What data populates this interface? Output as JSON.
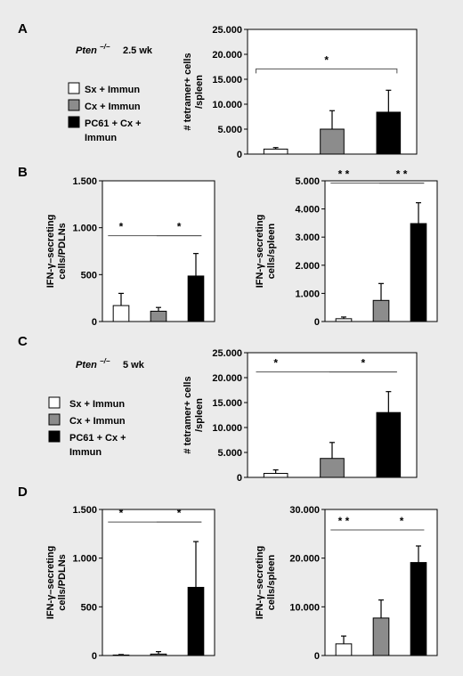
{
  "panels": [
    {
      "id": "A",
      "label": "A"
    },
    {
      "id": "B",
      "label": "B"
    },
    {
      "id": "C",
      "label": "C"
    },
    {
      "id": "D",
      "label": "D"
    }
  ],
  "annotations": {
    "A": {
      "genotype": "Pten",
      "genotype_sup": "−/−",
      "time": "2.5 wk"
    },
    "C": {
      "genotype": "Pten",
      "genotype_sup": "−/−",
      "time": "5 wk"
    }
  },
  "legend": [
    {
      "label": "Sx + Immun",
      "color": "#ffffff"
    },
    {
      "label": "Cx + Immun",
      "color": "#8c8c8c"
    },
    {
      "label": "PC61 + Cx +",
      "label2": "Immun",
      "color": "#000000"
    }
  ],
  "colors": {
    "bar1": "#ffffff",
    "bar2": "#8c8c8c",
    "bar3": "#000000",
    "background": "#ebebeb"
  },
  "chart_data": [
    {
      "panel": "A",
      "type": "bar",
      "categories": [
        "Sx + Immun",
        "Cx + Immun",
        "PC61 + Cx + Immun"
      ],
      "values": [
        1000,
        5000,
        8400
      ],
      "errors": [
        300,
        3700,
        4400
      ],
      "ylabel": "# tetramer+ cells /spleen",
      "ylim": [
        0,
        25000
      ],
      "yticks": [
        0,
        5000,
        10000,
        15000,
        20000,
        25000
      ],
      "yticklabels": [
        "0",
        "5.000",
        "10.000",
        "15.000",
        "20.000",
        "25.000"
      ],
      "significance": [
        {
          "from": 0,
          "to": 2,
          "label": "*"
        }
      ]
    },
    {
      "panel": "B",
      "type": "bar",
      "categories": [
        "Sx + Immun",
        "Cx + Immun",
        "PC61 + Cx + Immun"
      ],
      "values": [
        170,
        110,
        485
      ],
      "errors": [
        130,
        40,
        240
      ],
      "ylabel": "IFN-γ–secreting cells/PDLNs",
      "ylim": [
        0,
        1500
      ],
      "yticks": [
        0,
        500,
        1000,
        1500
      ],
      "yticklabels": [
        "0",
        "500",
        "1.000",
        "1.500"
      ],
      "significance": [
        {
          "from": 0,
          "to": 2,
          "label": "*"
        },
        {
          "from": 1,
          "to": 2,
          "label": "*"
        }
      ]
    },
    {
      "panel": "B",
      "type": "bar",
      "categories": [
        "Sx + Immun",
        "Cx + Immun",
        "PC61 + Cx + Immun"
      ],
      "values": [
        100,
        750,
        3480
      ],
      "errors": [
        60,
        600,
        740
      ],
      "ylabel": "IFN-γ–secreting cells/spleen",
      "ylim": [
        0,
        5000
      ],
      "yticks": [
        0,
        1000,
        2000,
        3000,
        4000,
        5000
      ],
      "yticklabels": [
        "0",
        "1.000",
        "2.000",
        "3.000",
        "4.000",
        "5.000"
      ],
      "significance": [
        {
          "from": 0,
          "to": 2,
          "label": "* *"
        },
        {
          "from": 1,
          "to": 2,
          "label": "* *"
        }
      ]
    },
    {
      "panel": "C",
      "type": "bar",
      "categories": [
        "Sx + Immun",
        "Cx + Immun",
        "PC61 + Cx + Immun"
      ],
      "values": [
        800,
        3800,
        13000
      ],
      "errors": [
        700,
        3200,
        4200
      ],
      "ylabel": "# tetramer+ cells /spleen",
      "ylim": [
        0,
        25000
      ],
      "yticks": [
        0,
        5000,
        10000,
        15000,
        20000,
        25000
      ],
      "yticklabels": [
        "0",
        "5.000",
        "10.000",
        "15.000",
        "20.000",
        "25.000"
      ],
      "significance": [
        {
          "from": 0,
          "to": 2,
          "label": "*"
        },
        {
          "from": 1,
          "to": 2,
          "label": "*"
        }
      ]
    },
    {
      "panel": "D",
      "type": "bar",
      "categories": [
        "Sx + Immun",
        "Cx + Immun",
        "PC61 + Cx + Immun"
      ],
      "values": [
        5,
        15,
        700
      ],
      "errors": [
        5,
        25,
        470
      ],
      "ylabel": "IFN-γ–secreting cells/PDLNs",
      "ylim": [
        0,
        1500
      ],
      "yticks": [
        0,
        500,
        1000,
        1500
      ],
      "yticklabels": [
        "0",
        "500",
        "1.000",
        "1.500"
      ],
      "significance": [
        {
          "from": 0,
          "to": 2,
          "label": "*"
        },
        {
          "from": 1,
          "to": 2,
          "label": "*"
        }
      ]
    },
    {
      "panel": "D",
      "type": "bar",
      "categories": [
        "Sx + Immun",
        "Cx + Immun",
        "PC61 + Cx + Immun"
      ],
      "values": [
        2400,
        7700,
        19100
      ],
      "errors": [
        1600,
        3700,
        3400
      ],
      "ylabel": "IFN-γ–secreting cells/spleen",
      "ylim": [
        0,
        30000
      ],
      "yticks": [
        0,
        10000,
        20000,
        30000
      ],
      "yticklabels": [
        "0",
        "10.000",
        "20.000",
        "30.000"
      ],
      "significance": [
        {
          "from": 0,
          "to": 2,
          "label": "* *"
        },
        {
          "from": 1,
          "to": 2,
          "label": "*"
        }
      ]
    }
  ]
}
